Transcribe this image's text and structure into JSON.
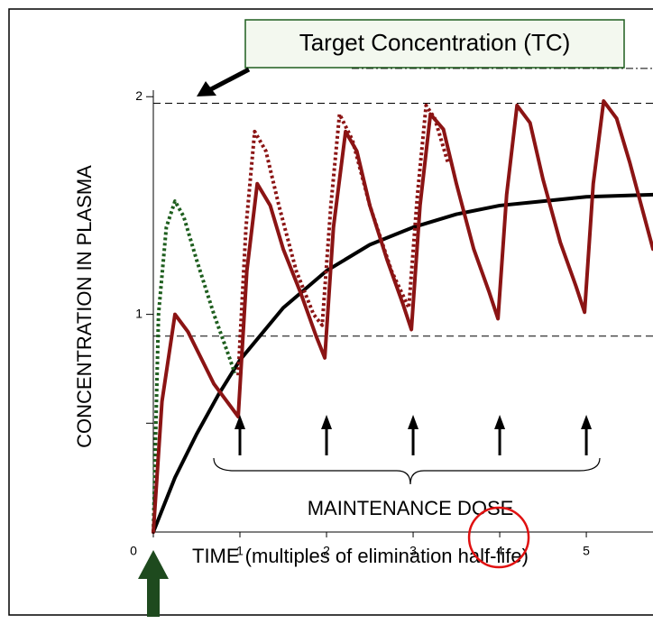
{
  "chart_data": {
    "type": "line",
    "title": "Target Concentration (TC)",
    "ylabel": "CONCENTRATION IN PLASMA",
    "xlabel": "TIME (multiples of elimination half-life)",
    "annotation": "MAINTENANCE DOSE",
    "xlim": [
      0,
      5.77
    ],
    "ylim": [
      0,
      2.03
    ],
    "xticks": [
      0,
      1,
      2,
      3,
      4,
      5
    ],
    "yticks": [
      1,
      2
    ],
    "y_minor_ticks": [
      0.5
    ],
    "reference_lines": [
      1.97,
      0.9
    ],
    "upper_line": 2.13,
    "doses": [
      1,
      2,
      3,
      4,
      5
    ],
    "loading_dose": 0,
    "highlight_x": 4,
    "series": [
      {
        "style": "solid",
        "color": "#000000",
        "x": [
          0,
          0.25,
          0.5,
          0.75,
          1,
          1.5,
          2,
          2.5,
          3,
          3.5,
          4,
          4.5,
          5,
          5.77
        ],
        "values": [
          0,
          0.25,
          0.45,
          0.63,
          0.79,
          1.03,
          1.2,
          1.32,
          1.4,
          1.46,
          1.5,
          1.52,
          1.54,
          1.55
        ]
      },
      {
        "style": "dotted",
        "color": "#1e5e1e",
        "x": [
          0,
          0.06,
          0.15,
          0.25,
          0.35,
          0.5,
          0.7,
          0.88,
          0.94
        ],
        "values": [
          0,
          1.0,
          1.4,
          1.52,
          1.45,
          1.25,
          1.0,
          0.8,
          0.73
        ]
      },
      {
        "style": "dotted",
        "color": "#8b1414",
        "x": [
          0.98,
          1.07,
          1.17,
          1.3,
          1.45,
          1.65,
          1.85,
          1.95,
          2.05,
          2.15,
          2.3,
          2.5,
          2.75,
          2.95,
          3.05,
          3.15,
          3.25,
          3.4
        ],
        "values": [
          0.72,
          1.4,
          1.84,
          1.75,
          1.5,
          1.2,
          1.0,
          0.95,
          1.5,
          1.92,
          1.8,
          1.5,
          1.2,
          1.03,
          1.55,
          1.96,
          1.9,
          1.7
        ]
      },
      {
        "style": "solid",
        "color": "#8b1414",
        "x": [
          0,
          0.1,
          0.25,
          0.4,
          0.55,
          0.7,
          0.85,
          0.98,
          1.08,
          1.2,
          1.35,
          1.5,
          1.7,
          1.88,
          1.98,
          2.08,
          2.22,
          2.35,
          2.5,
          2.7,
          2.88,
          2.98,
          3.08,
          3.2,
          3.35,
          3.5,
          3.7,
          3.88,
          3.98,
          4.08,
          4.2,
          4.35,
          4.5,
          4.7,
          4.88,
          4.98,
          5.08,
          5.2,
          5.35,
          5.5,
          5.77
        ],
        "values": [
          0,
          0.6,
          1.0,
          0.92,
          0.8,
          0.68,
          0.6,
          0.53,
          1.2,
          1.6,
          1.5,
          1.3,
          1.1,
          0.9,
          0.8,
          1.4,
          1.84,
          1.75,
          1.5,
          1.25,
          1.05,
          0.93,
          1.5,
          1.92,
          1.85,
          1.6,
          1.3,
          1.1,
          0.98,
          1.55,
          1.96,
          1.88,
          1.62,
          1.33,
          1.13,
          1.01,
          1.6,
          1.98,
          1.9,
          1.7,
          1.3
        ]
      }
    ]
  }
}
